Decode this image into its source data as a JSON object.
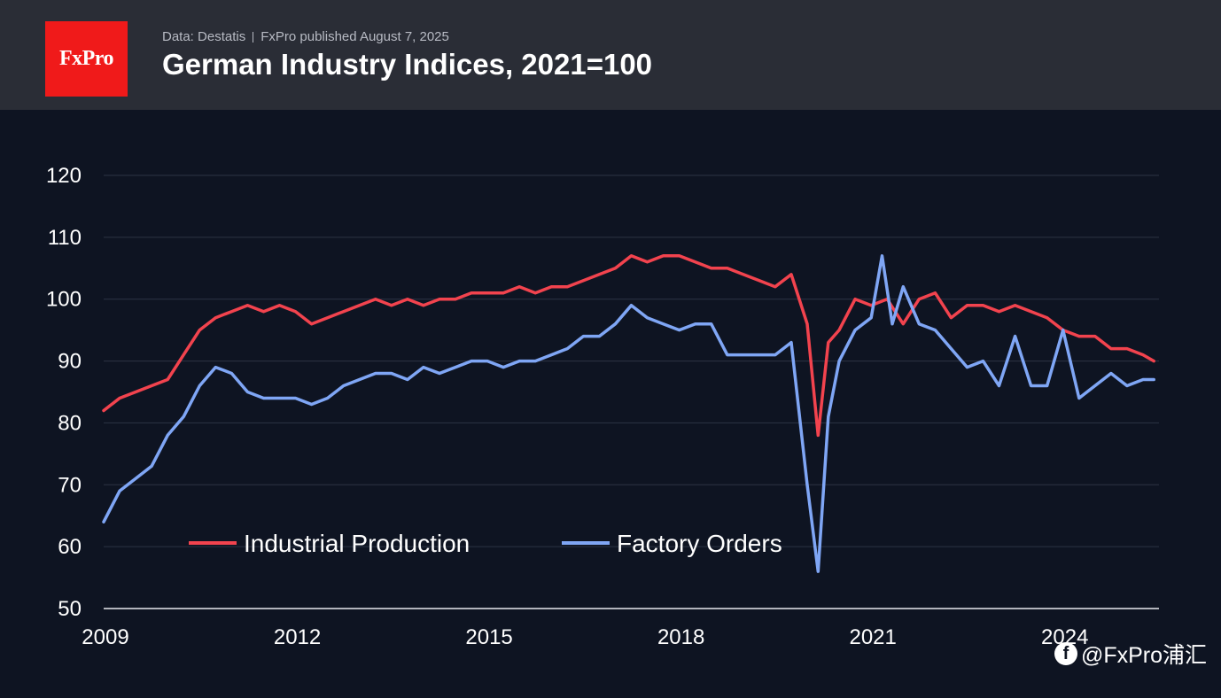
{
  "header": {
    "logo_text": "FxPro",
    "source_part1": "Data: Destatis",
    "source_part2": "FxPro published August 7, 2025",
    "title": "German Industry Indices, 2021=100"
  },
  "watermark": "@FxPro浦汇",
  "colors": {
    "background": "#0e1422",
    "header": "#2a2d36",
    "logo": "#f01a1a",
    "industrial_production": "#f2434e",
    "factory_orders": "#7fa6f5",
    "grid": "#2c3344"
  },
  "chart_data": {
    "type": "line",
    "title": "German Industry Indices, 2021=100",
    "xlabel": "",
    "ylabel": "",
    "ylim": [
      50,
      120
    ],
    "yticks": [
      50,
      60,
      70,
      80,
      90,
      100,
      110,
      120
    ],
    "xlim": [
      2009.0,
      2025.5
    ],
    "xticks": [
      2009,
      2012,
      2015,
      2018,
      2021,
      2024
    ],
    "grid": "horizontal",
    "legend": "bottom-left",
    "series": [
      {
        "name": "Industrial Production",
        "color": "#f2434e",
        "x": [
          2009.0,
          2009.25,
          2009.5,
          2009.75,
          2010.0,
          2010.25,
          2010.5,
          2010.75,
          2011.0,
          2011.25,
          2011.5,
          2011.75,
          2012.0,
          2012.25,
          2012.5,
          2012.75,
          2013.0,
          2013.25,
          2013.5,
          2013.75,
          2014.0,
          2014.25,
          2014.5,
          2014.75,
          2015.0,
          2015.25,
          2015.5,
          2015.75,
          2016.0,
          2016.25,
          2016.5,
          2016.75,
          2017.0,
          2017.25,
          2017.5,
          2017.75,
          2018.0,
          2018.25,
          2018.5,
          2018.75,
          2019.0,
          2019.25,
          2019.5,
          2019.75,
          2020.0,
          2020.17,
          2020.33,
          2020.5,
          2020.75,
          2021.0,
          2021.25,
          2021.5,
          2021.75,
          2022.0,
          2022.25,
          2022.5,
          2022.75,
          2023.0,
          2023.25,
          2023.5,
          2023.75,
          2024.0,
          2024.25,
          2024.5,
          2024.75,
          2025.0,
          2025.25,
          2025.42
        ],
        "values": [
          82,
          84,
          85,
          86,
          87,
          91,
          95,
          97,
          98,
          99,
          98,
          99,
          98,
          96,
          97,
          98,
          99,
          100,
          99,
          100,
          99,
          100,
          100,
          101,
          101,
          101,
          102,
          101,
          102,
          102,
          103,
          104,
          105,
          107,
          106,
          107,
          107,
          106,
          105,
          105,
          104,
          103,
          102,
          104,
          96,
          78,
          93,
          95,
          100,
          99,
          100,
          96,
          100,
          101,
          97,
          99,
          99,
          98,
          99,
          98,
          97,
          95,
          94,
          94,
          92,
          92,
          91,
          90
        ]
      },
      {
        "name": "Factory Orders",
        "color": "#7fa6f5",
        "x": [
          2009.0,
          2009.25,
          2009.5,
          2009.75,
          2010.0,
          2010.25,
          2010.5,
          2010.75,
          2011.0,
          2011.25,
          2011.5,
          2011.75,
          2012.0,
          2012.25,
          2012.5,
          2012.75,
          2013.0,
          2013.25,
          2013.5,
          2013.75,
          2014.0,
          2014.25,
          2014.5,
          2014.75,
          2015.0,
          2015.25,
          2015.5,
          2015.75,
          2016.0,
          2016.25,
          2016.5,
          2016.75,
          2017.0,
          2017.25,
          2017.5,
          2017.75,
          2018.0,
          2018.25,
          2018.5,
          2018.75,
          2019.0,
          2019.25,
          2019.5,
          2019.75,
          2020.0,
          2020.17,
          2020.33,
          2020.5,
          2020.75,
          2021.0,
          2021.17,
          2021.33,
          2021.5,
          2021.75,
          2022.0,
          2022.25,
          2022.5,
          2022.75,
          2023.0,
          2023.25,
          2023.5,
          2023.75,
          2024.0,
          2024.25,
          2024.5,
          2024.75,
          2025.0,
          2025.25,
          2025.42
        ],
        "values": [
          64,
          69,
          71,
          73,
          78,
          81,
          86,
          89,
          88,
          85,
          84,
          84,
          84,
          83,
          84,
          86,
          87,
          88,
          88,
          87,
          89,
          88,
          89,
          90,
          90,
          89,
          90,
          90,
          91,
          92,
          94,
          94,
          96,
          99,
          97,
          96,
          95,
          96,
          96,
          91,
          91,
          91,
          91,
          93,
          70,
          56,
          81,
          90,
          95,
          97,
          107,
          96,
          102,
          96,
          95,
          92,
          89,
          90,
          86,
          94,
          86,
          86,
          95,
          84,
          86,
          88,
          86,
          87,
          87
        ]
      }
    ]
  }
}
